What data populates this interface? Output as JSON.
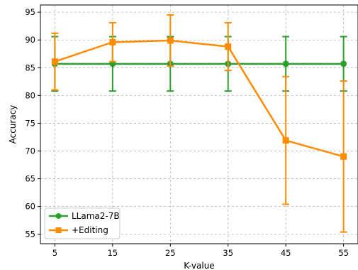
{
  "chart_data": {
    "type": "line",
    "title": "",
    "xlabel": "K-value",
    "ylabel": "Accuracy",
    "x": [
      5,
      15,
      25,
      35,
      45,
      55
    ],
    "xticks": [
      5,
      15,
      25,
      35,
      45,
      55
    ],
    "yticks": [
      55,
      60,
      65,
      70,
      75,
      80,
      85,
      90,
      95
    ],
    "xlim": [
      2.5,
      57.5
    ],
    "ylim": [
      53.3,
      96.3
    ],
    "grid": true,
    "legend_position": "lower-left",
    "series": [
      {
        "name": "LLama2-7B",
        "color": "#2ca02c",
        "marker": "circle",
        "values": [
          85.7,
          85.7,
          85.7,
          85.7,
          85.7,
          85.7
        ],
        "error": [
          4.9,
          4.9,
          4.9,
          4.9,
          4.9,
          4.9
        ]
      },
      {
        "name": "+Editing",
        "color": "#ff8c00",
        "marker": "square",
        "values": [
          86.1,
          89.6,
          89.9,
          88.8,
          71.9,
          69.0
        ],
        "error": [
          5.1,
          3.5,
          4.6,
          4.3,
          11.5,
          13.6
        ]
      }
    ]
  }
}
